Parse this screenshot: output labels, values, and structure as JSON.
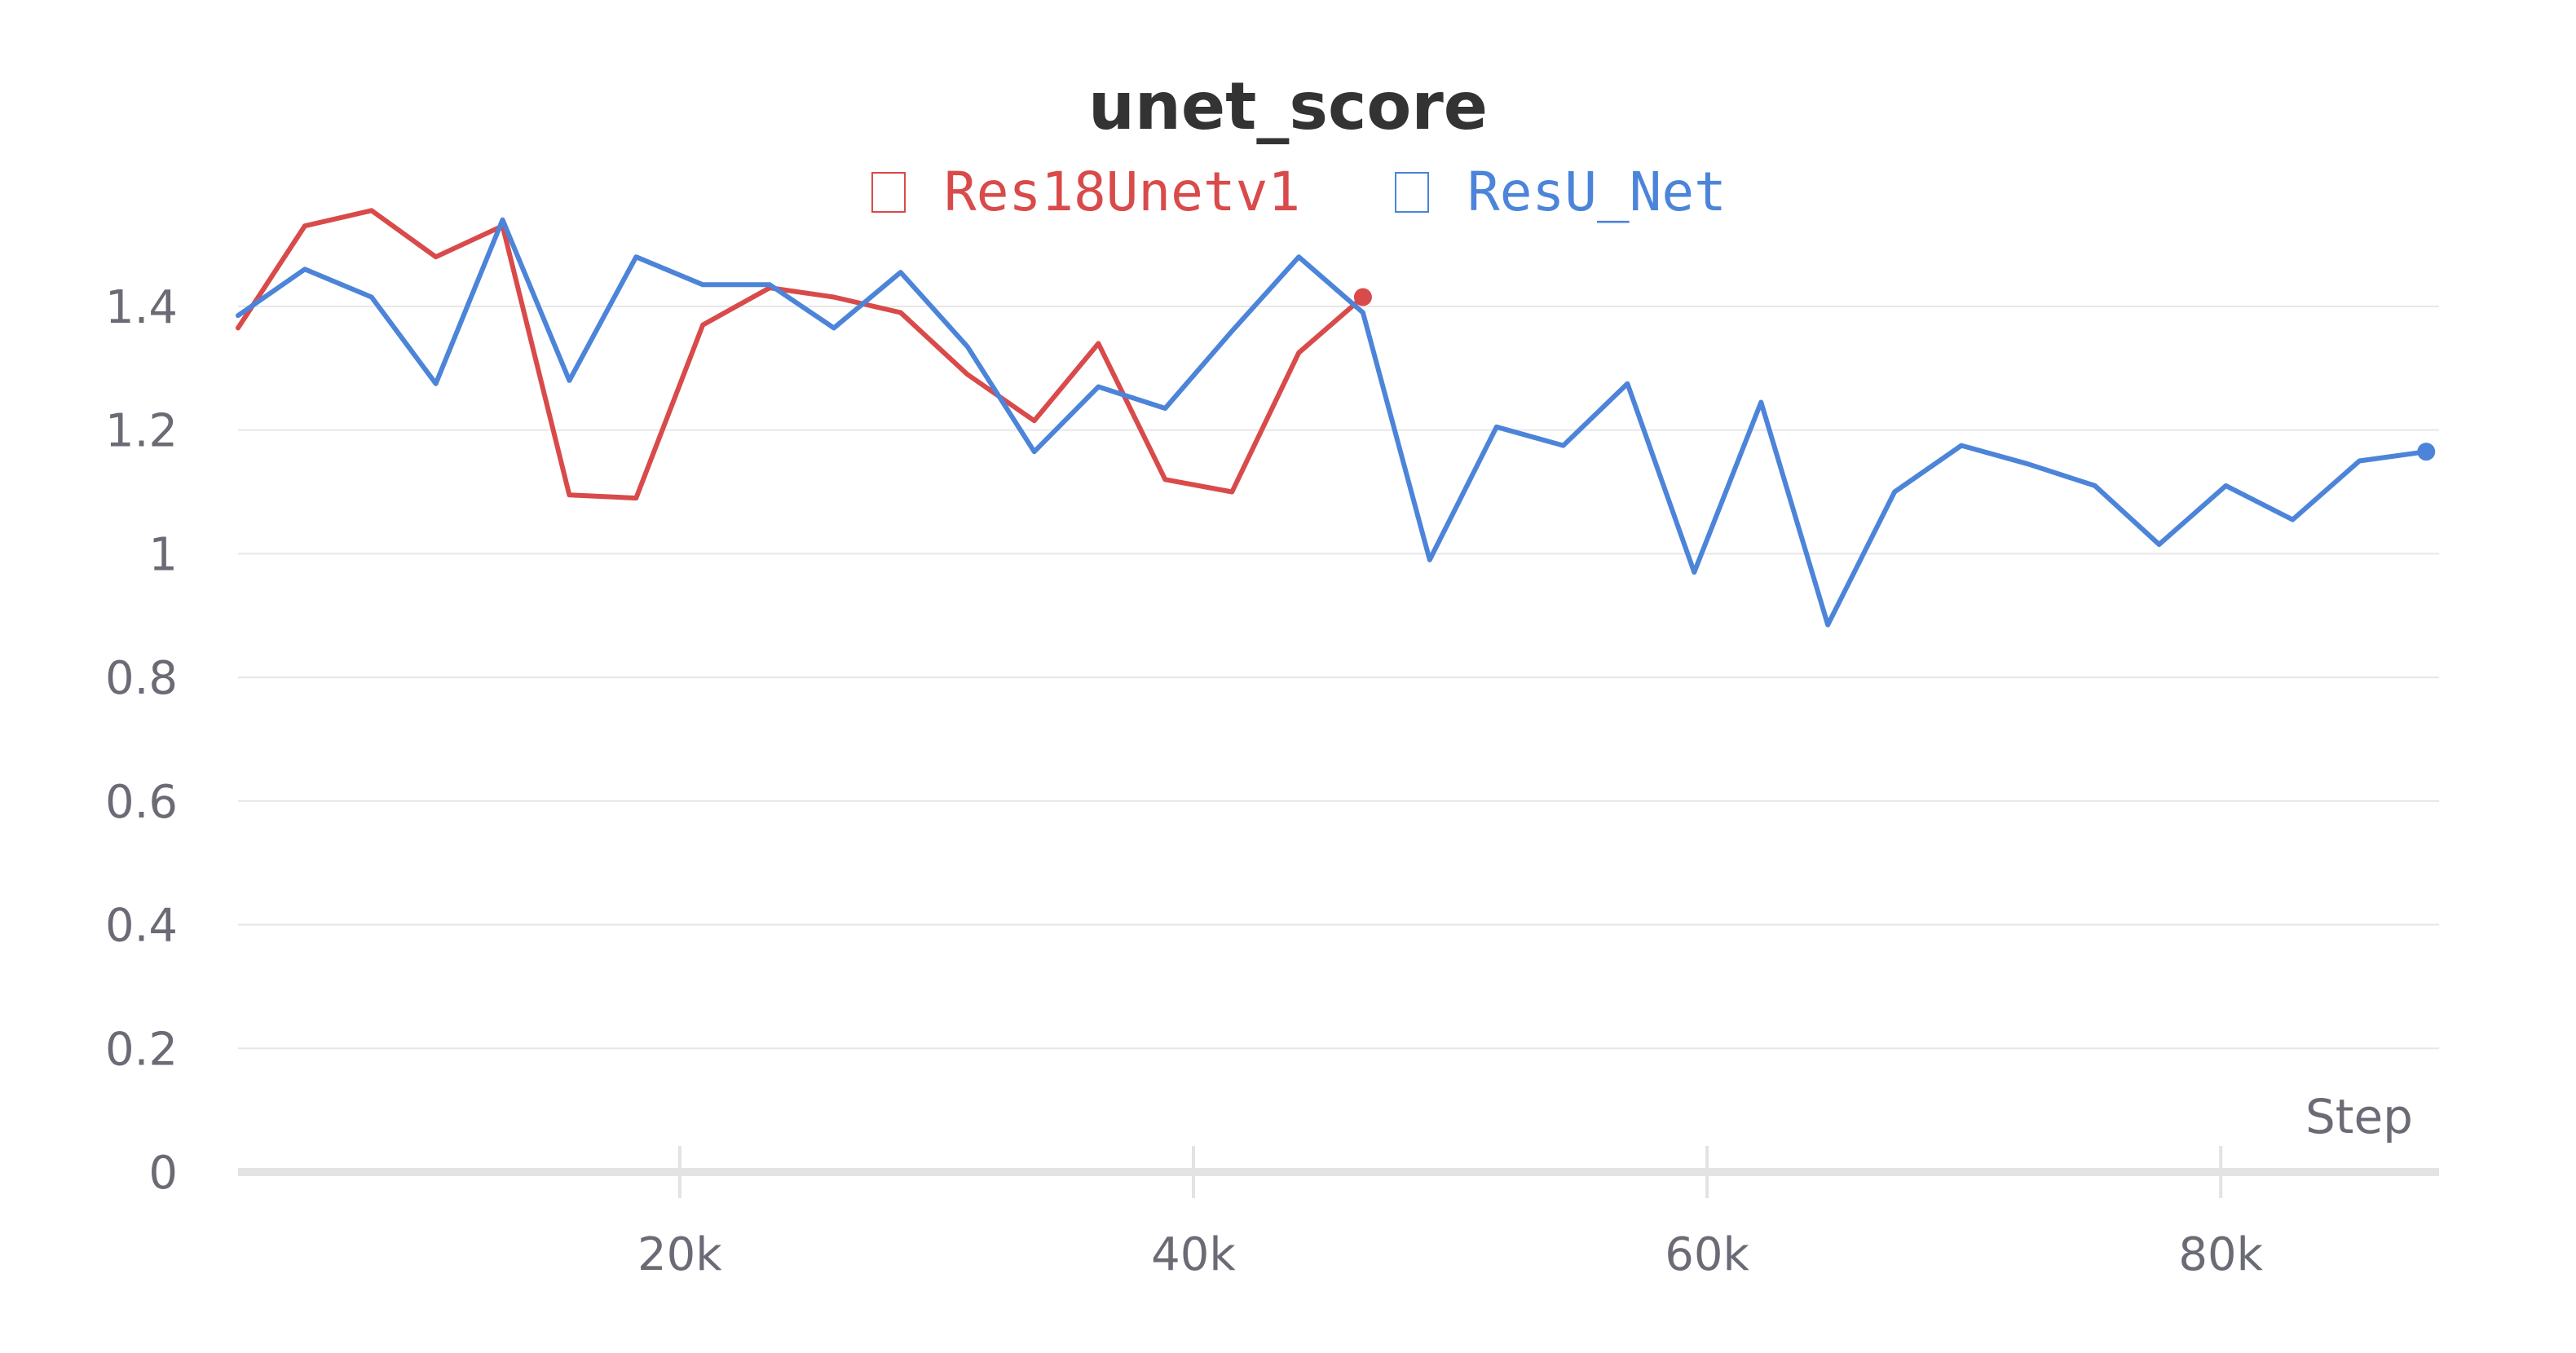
{
  "chart_data": {
    "type": "line",
    "title": "unet_score",
    "xlabel": "Step",
    "ylabel": "",
    "xlim": [
      2800,
      88500
    ],
    "ylim": [
      0,
      1.5
    ],
    "grid": true,
    "legend_position": "top-center",
    "x_ticks": [
      {
        "value": 20000,
        "label": "20k"
      },
      {
        "value": 40000,
        "label": "40k"
      },
      {
        "value": 60000,
        "label": "60k"
      },
      {
        "value": 80000,
        "label": "80k"
      }
    ],
    "y_ticks": [
      {
        "value": 0,
        "label": "0"
      },
      {
        "value": 0.2,
        "label": "0.2"
      },
      {
        "value": 0.4,
        "label": "0.4"
      },
      {
        "value": 0.6,
        "label": "0.6"
      },
      {
        "value": 0.8,
        "label": "0.8"
      },
      {
        "value": 1,
        "label": "1"
      },
      {
        "value": 1.2,
        "label": "1.2"
      },
      {
        "value": 1.4,
        "label": "1.4"
      }
    ],
    "series": [
      {
        "name": "Res18Unetv1",
        "color": "#d94a4a",
        "x": [
          2800,
          5400,
          8000,
          10500,
          13100,
          15700,
          18300,
          20900,
          23500,
          26000,
          28600,
          31200,
          33800,
          36300,
          38900,
          41500,
          44100,
          46600
        ],
        "y": [
          1.365,
          1.53,
          1.555,
          1.48,
          1.53,
          1.095,
          1.09,
          1.37,
          1.43,
          1.415,
          1.39,
          1.29,
          1.215,
          1.34,
          1.12,
          1.1,
          1.325,
          1.415
        ]
      },
      {
        "name": "ResU_Net",
        "color": "#4c84d9",
        "x": [
          2800,
          5400,
          8000,
          10500,
          13100,
          15700,
          18300,
          20900,
          23500,
          26000,
          28600,
          31200,
          33800,
          36300,
          38900,
          41500,
          44100,
          46600,
          49200,
          51800,
          54400,
          56900,
          59500,
          62100,
          64700,
          67300,
          69900,
          72500,
          75100,
          77600,
          80200,
          82800,
          85400,
          88000
        ],
        "y": [
          1.385,
          1.46,
          1.415,
          1.275,
          1.54,
          1.28,
          1.48,
          1.435,
          1.435,
          1.365,
          1.455,
          1.335,
          1.165,
          1.27,
          1.235,
          1.36,
          1.48,
          1.39,
          0.99,
          1.205,
          1.175,
          1.275,
          0.97,
          1.245,
          0.885,
          1.1,
          1.175,
          1.145,
          1.11,
          1.015,
          1.11,
          1.055,
          1.15,
          1.165
        ]
      }
    ]
  }
}
